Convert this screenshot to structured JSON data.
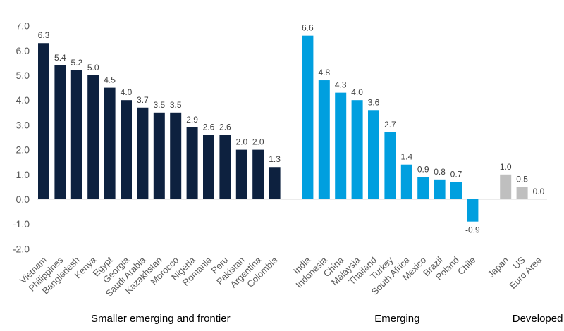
{
  "chart_data": {
    "type": "bar",
    "title": "",
    "xlabel": "",
    "ylabel": "",
    "ylim": [
      -2.0,
      7.0
    ],
    "yticks": [
      "7.0",
      "6.0",
      "5.0",
      "4.0",
      "3.0",
      "2.0",
      "1.0",
      "0.0",
      "-1.0",
      "-2.0"
    ],
    "grid": false,
    "legend": "none",
    "groups": [
      {
        "name": "Smaller emerging and frontier",
        "color": "#0d213f",
        "categories": [
          "Vietnam",
          "Philippines",
          "Bangladesh",
          "Kenya",
          "Egypt",
          "Georgia",
          "Saudi Arabia",
          "Kazakhstan",
          "Morocco",
          "Nigeria",
          "Romania",
          "Peru",
          "Pakistan",
          "Argentina",
          "Colombia"
        ],
        "values": [
          6.3,
          5.4,
          5.2,
          5.0,
          4.5,
          4.0,
          3.7,
          3.5,
          3.5,
          2.9,
          2.6,
          2.6,
          2.0,
          2.0,
          1.3
        ],
        "labels": [
          "6.3",
          "5.4",
          "5.2",
          "5.0",
          "4.5",
          "4.0",
          "3.7",
          "3.5",
          "3.5",
          "2.9",
          "2.6",
          "2.6",
          "2.0",
          "2.0",
          "1.3"
        ]
      },
      {
        "name": "Emerging",
        "color": "#009fdf",
        "categories": [
          "India",
          "Indonesia",
          "China",
          "Malaysia",
          "Thailand",
          "Turkey",
          "South Africa",
          "Mexico",
          "Brazil",
          "Poland",
          "Chile"
        ],
        "values": [
          6.6,
          4.8,
          4.3,
          4.0,
          3.6,
          2.7,
          1.4,
          0.9,
          0.8,
          0.7,
          -0.9
        ],
        "labels": [
          "6.6",
          "4.8",
          "4.3",
          "4.0",
          "3.6",
          "2.7",
          "1.4",
          "0.9",
          "0.8",
          "0.7",
          "-0.9"
        ]
      },
      {
        "name": "Developed",
        "color": "#bfbfbf",
        "categories": [
          "Japan",
          "US",
          "Euro Area"
        ],
        "values": [
          1.0,
          0.5,
          0.0
        ],
        "labels": [
          "1.0",
          "0.5",
          "0.0"
        ]
      }
    ]
  }
}
